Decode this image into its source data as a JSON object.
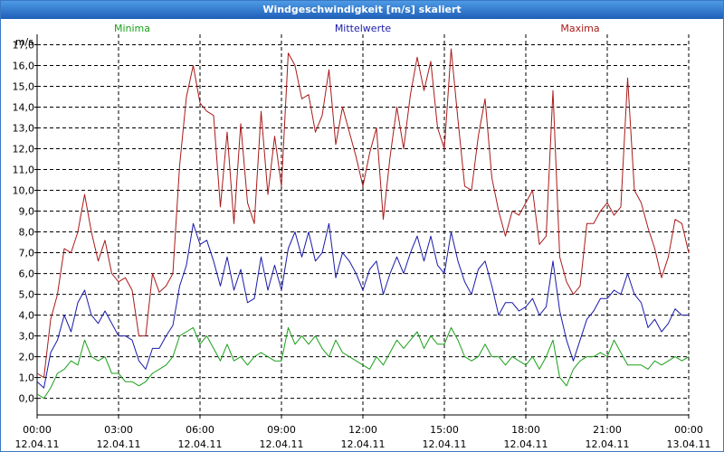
{
  "window": {
    "title": "Windgeschwindigkeit [m/s] skaliert"
  },
  "chart_data": {
    "type": "line",
    "title": "Windgeschwindigkeit [m/s] skaliert",
    "ylabel": "m/s",
    "ylim": [
      -0.8,
      17.5
    ],
    "yticks": [
      {
        "v": 0,
        "label": "0,0"
      },
      {
        "v": 1,
        "label": "1,0"
      },
      {
        "v": 2,
        "label": "2,0"
      },
      {
        "v": 3,
        "label": "3,0"
      },
      {
        "v": 4,
        "label": "4,0"
      },
      {
        "v": 5,
        "label": "5,0"
      },
      {
        "v": 6,
        "label": "6,0"
      },
      {
        "v": 7,
        "label": "7,0"
      },
      {
        "v": 8,
        "label": "8,0"
      },
      {
        "v": 9,
        "label": "9,0"
      },
      {
        "v": 10,
        "label": "10,0"
      },
      {
        "v": 11,
        "label": "11,0"
      },
      {
        "v": 12,
        "label": "12,0"
      },
      {
        "v": 13,
        "label": "13,0"
      },
      {
        "v": 14,
        "label": "14,0"
      },
      {
        "v": 15,
        "label": "15,0"
      },
      {
        "v": 16,
        "label": "16,0"
      },
      {
        "v": 17,
        "label": "17,0"
      }
    ],
    "xlim": [
      0,
      24
    ],
    "xticks": [
      {
        "h": 0,
        "time": "00:00",
        "date": "12.04.11"
      },
      {
        "h": 3,
        "time": "03:00",
        "date": "12.04.11"
      },
      {
        "h": 6,
        "time": "06:00",
        "date": "12.04.11"
      },
      {
        "h": 9,
        "time": "09:00",
        "date": "12.04.11"
      },
      {
        "h": 12,
        "time": "12:00",
        "date": "12.04.11"
      },
      {
        "h": 15,
        "time": "15:00",
        "date": "12.04.11"
      },
      {
        "h": 18,
        "time": "18:00",
        "date": "12.04.11"
      },
      {
        "h": 21,
        "time": "21:00",
        "date": "12.04.11"
      },
      {
        "h": 24,
        "time": "00:00",
        "date": "13.04.11"
      }
    ],
    "legend": [
      {
        "name": "Minima",
        "color": "#1aa01a"
      },
      {
        "name": "Mittelwerte",
        "color": "#1a1aaa"
      },
      {
        "name": "Maxima",
        "color": "#aa1a1a"
      }
    ],
    "series": [
      {
        "name": "Maxima",
        "color": "#aa1a1a",
        "x": [
          0,
          0.25,
          0.5,
          0.75,
          1,
          1.25,
          1.5,
          1.75,
          2,
          2.25,
          2.5,
          2.75,
          3,
          3.25,
          3.5,
          3.75,
          4,
          4.25,
          4.5,
          4.75,
          5,
          5.25,
          5.5,
          5.75,
          6,
          6.25,
          6.5,
          6.75,
          7,
          7.25,
          7.5,
          7.75,
          8,
          8.25,
          8.5,
          8.75,
          9,
          9.25,
          9.5,
          9.75,
          10,
          10.25,
          10.5,
          10.75,
          11,
          11.25,
          11.5,
          11.75,
          12,
          12.25,
          12.5,
          12.75,
          13,
          13.25,
          13.5,
          13.75,
          14,
          14.25,
          14.5,
          14.75,
          15,
          15.25,
          15.5,
          15.75,
          16,
          16.25,
          16.5,
          16.75,
          17,
          17.25,
          17.5,
          17.75,
          18,
          18.25,
          18.5,
          18.75,
          19,
          19.25,
          19.5,
          19.75,
          20,
          20.25,
          20.5,
          20.75,
          21,
          21.25,
          21.5,
          21.75,
          22,
          22.25,
          22.5,
          22.75,
          23,
          23.25,
          23.5,
          23.75,
          24
        ],
        "values": [
          1.2,
          1.0,
          3.8,
          5.0,
          7.2,
          7.0,
          8.0,
          9.8,
          8.0,
          6.6,
          7.6,
          6.0,
          5.6,
          5.8,
          5.2,
          3.0,
          3.0,
          6.0,
          5.1,
          5.4,
          6.0,
          11.2,
          14.5,
          16.0,
          14.2,
          13.8,
          13.6,
          9.2,
          12.8,
          8.4,
          13.2,
          9.4,
          8.4,
          13.8,
          9.8,
          12.6,
          10.2,
          16.6,
          16.0,
          14.4,
          14.6,
          12.8,
          13.6,
          15.8,
          12.2,
          14.0,
          12.8,
          11.6,
          10.2,
          11.8,
          13.0,
          8.6,
          11.6,
          14.0,
          12.0,
          14.6,
          16.4,
          14.8,
          16.2,
          13.0,
          12.0,
          16.8,
          13.4,
          10.2,
          10.0,
          12.6,
          14.4,
          10.6,
          9.0,
          7.8,
          9.0,
          8.8,
          9.4,
          10.0,
          7.4,
          7.8,
          14.8,
          6.8,
          5.6,
          5.0,
          5.4,
          8.4,
          8.4,
          9.0,
          9.4,
          8.8,
          9.2,
          15.4,
          10.0,
          9.4,
          8.2,
          7.2,
          5.8,
          6.8,
          8.6,
          8.4,
          7.0
        ]
      },
      {
        "name": "Mittelwerte",
        "color": "#1a1aaa",
        "x": [
          0,
          0.25,
          0.5,
          0.75,
          1,
          1.25,
          1.5,
          1.75,
          2,
          2.25,
          2.5,
          2.75,
          3,
          3.25,
          3.5,
          3.75,
          4,
          4.25,
          4.5,
          4.75,
          5,
          5.25,
          5.5,
          5.75,
          6,
          6.25,
          6.5,
          6.75,
          7,
          7.25,
          7.5,
          7.75,
          8,
          8.25,
          8.5,
          8.75,
          9,
          9.25,
          9.5,
          9.75,
          10,
          10.25,
          10.5,
          10.75,
          11,
          11.25,
          11.5,
          11.75,
          12,
          12.25,
          12.5,
          12.75,
          13,
          13.25,
          13.5,
          13.75,
          14,
          14.25,
          14.5,
          14.75,
          15,
          15.25,
          15.5,
          15.75,
          16,
          16.25,
          16.5,
          16.75,
          17,
          17.25,
          17.5,
          17.75,
          18,
          18.25,
          18.5,
          18.75,
          19,
          19.25,
          19.5,
          19.75,
          20,
          20.25,
          20.5,
          20.75,
          21,
          21.25,
          21.5,
          21.75,
          22,
          22.25,
          22.5,
          22.75,
          23,
          23.25,
          23.5,
          23.75,
          24
        ],
        "values": [
          0.8,
          0.5,
          2.2,
          2.8,
          4.0,
          3.2,
          4.6,
          5.2,
          4.0,
          3.6,
          4.2,
          3.6,
          3.0,
          3.0,
          2.8,
          1.8,
          1.4,
          2.4,
          2.4,
          3.0,
          3.5,
          5.4,
          6.4,
          8.4,
          7.4,
          7.6,
          6.6,
          5.4,
          6.8,
          5.2,
          6.2,
          4.6,
          4.8,
          6.8,
          5.2,
          6.4,
          5.2,
          7.2,
          8.0,
          6.8,
          8.0,
          6.6,
          7.0,
          8.4,
          5.8,
          7.0,
          6.6,
          6.0,
          5.2,
          6.2,
          6.6,
          5.0,
          6.0,
          6.8,
          6.0,
          7.0,
          7.8,
          6.6,
          7.8,
          6.4,
          6.0,
          8.0,
          6.6,
          5.6,
          5.0,
          6.2,
          6.6,
          5.4,
          4.0,
          4.6,
          4.6,
          4.2,
          4.4,
          4.8,
          4.0,
          4.4,
          6.6,
          4.2,
          2.8,
          1.8,
          2.8,
          3.8,
          4.2,
          4.8,
          4.8,
          5.2,
          5.0,
          6.0,
          5.0,
          4.6,
          3.4,
          3.8,
          3.2,
          3.6,
          4.3,
          4.0,
          4.0
        ]
      },
      {
        "name": "Minima",
        "color": "#1aa01a",
        "x": [
          0,
          0.25,
          0.5,
          0.75,
          1,
          1.25,
          1.5,
          1.75,
          2,
          2.25,
          2.5,
          2.75,
          3,
          3.25,
          3.5,
          3.75,
          4,
          4.25,
          4.5,
          4.75,
          5,
          5.25,
          5.5,
          5.75,
          6,
          6.25,
          6.5,
          6.75,
          7,
          7.25,
          7.5,
          7.75,
          8,
          8.25,
          8.5,
          8.75,
          9,
          9.25,
          9.5,
          9.75,
          10,
          10.25,
          10.5,
          10.75,
          11,
          11.25,
          11.5,
          11.75,
          12,
          12.25,
          12.5,
          12.75,
          13,
          13.25,
          13.5,
          13.75,
          14,
          14.25,
          14.5,
          14.75,
          15,
          15.25,
          15.5,
          15.75,
          16,
          16.25,
          16.5,
          16.75,
          17,
          17.25,
          17.5,
          17.75,
          18,
          18.25,
          18.5,
          18.75,
          19,
          19.25,
          19.5,
          19.75,
          20,
          20.25,
          20.5,
          20.75,
          21,
          21.25,
          21.5,
          21.75,
          22,
          22.25,
          22.5,
          22.75,
          23,
          23.25,
          23.5,
          23.75,
          24
        ],
        "values": [
          0.2,
          0.0,
          0.5,
          1.2,
          1.4,
          1.8,
          1.6,
          2.8,
          2.0,
          1.8,
          2.0,
          1.2,
          1.2,
          0.8,
          0.8,
          0.6,
          0.8,
          1.2,
          1.4,
          1.6,
          2.0,
          3.0,
          3.2,
          3.4,
          2.6,
          3.0,
          2.4,
          1.8,
          2.6,
          1.8,
          2.0,
          1.6,
          2.0,
          2.2,
          2.0,
          1.8,
          1.8,
          3.4,
          2.6,
          3.0,
          2.6,
          3.0,
          2.4,
          2.0,
          2.8,
          2.2,
          2.0,
          1.8,
          1.6,
          1.4,
          2.0,
          1.6,
          2.2,
          2.8,
          2.4,
          2.8,
          3.2,
          2.4,
          3.0,
          2.6,
          2.6,
          3.4,
          2.8,
          2.0,
          1.8,
          2.0,
          2.6,
          2.0,
          2.0,
          1.6,
          2.0,
          1.8,
          1.6,
          2.0,
          1.4,
          2.0,
          2.8,
          1.0,
          0.6,
          1.4,
          1.8,
          2.0,
          2.0,
          2.2,
          2.0,
          2.8,
          2.2,
          1.6,
          1.6,
          1.6,
          1.4,
          1.8,
          1.6,
          1.8,
          2.0,
          1.8,
          2.0
        ]
      }
    ]
  }
}
